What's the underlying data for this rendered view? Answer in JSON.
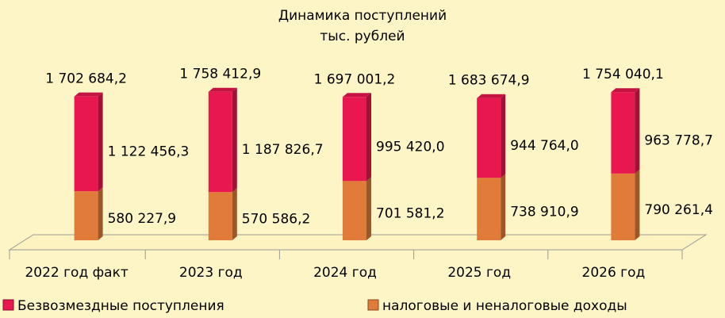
{
  "chart_data": {
    "type": "bar",
    "stacked": true,
    "title": "Динамика поступлений",
    "subtitle": "тыс. рублей",
    "categories": [
      "2022 год факт",
      "2023 год",
      "2024 год",
      "2025 год",
      "2026 год"
    ],
    "series": [
      {
        "name": "Безвозмездные поступления",
        "color": "#e8174f",
        "values": [
          1122456.3,
          1187826.7,
          995420.0,
          944764.0,
          963778.7
        ],
        "value_labels": [
          "1 122 456,3",
          "1 187 826,7",
          "995 420,0",
          "944 764,0",
          "963 778,7"
        ]
      },
      {
        "name": "налоговые и неналоговые доходы",
        "color": "#e07b39",
        "values": [
          580227.9,
          570586.2,
          701581.2,
          738910.9,
          790261.4
        ],
        "value_labels": [
          "580 227,9",
          "570 586,2",
          "701 581,2",
          "738 910,9",
          "790 261,4"
        ]
      }
    ],
    "totals": [
      1702684.2,
      1758412.9,
      1697001.2,
      1683674.9,
      1754040.1
    ],
    "total_labels": [
      "1 702 684,2",
      "1 758 412,9",
      "1 697 001,2",
      "1 683 674,9",
      "1 754 040,1"
    ],
    "ylim": [
      0,
      2000000
    ],
    "legend": "bottom"
  }
}
